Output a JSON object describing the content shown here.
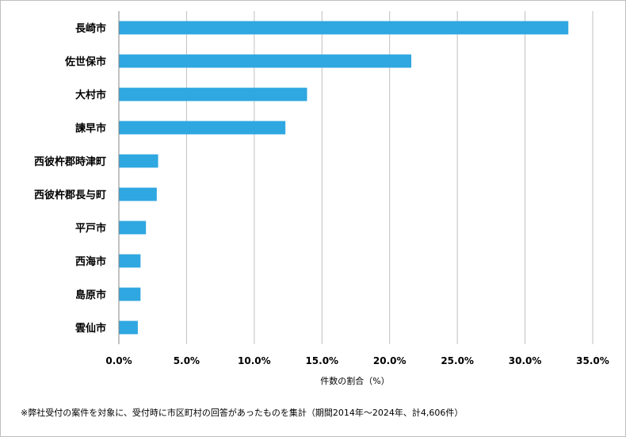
{
  "chart_data": {
    "type": "bar",
    "orientation": "horizontal",
    "categories": [
      "長崎市",
      "佐世保市",
      "大村市",
      "諫早市",
      "西彼杵郡時津町",
      "西彼杵郡長与町",
      "平戸市",
      "西海市",
      "島原市",
      "雲仙市"
    ],
    "values": [
      33.2,
      21.6,
      13.9,
      12.3,
      2.9,
      2.8,
      2.0,
      1.6,
      1.6,
      1.4
    ],
    "value_unit": "%",
    "xlabel": "件数の割合（%）",
    "ylabel": "",
    "xlim": [
      0,
      35
    ],
    "x_ticks": [
      "0.0%",
      "5.0%",
      "10.0%",
      "15.0%",
      "20.0%",
      "25.0%",
      "30.0%",
      "35.0%"
    ],
    "grid": "vertical",
    "legend": "none",
    "bar_color": "#2fa7e0"
  },
  "footnote": "※弊社受付の案件を対象に、受付時に市区町村の回答があったものを集計（期間2014年～2024年、計4,606件）"
}
